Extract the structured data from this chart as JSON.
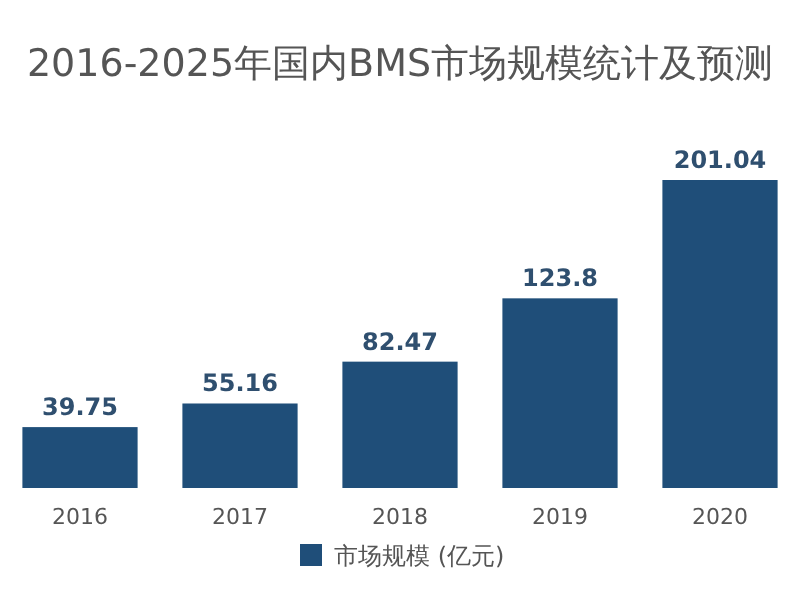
{
  "chart_data": {
    "type": "bar",
    "title": "2016-2025年国内BMS市场规模统计及预测",
    "categories": [
      "2016",
      "2017",
      "2018",
      "2019",
      "2020"
    ],
    "series": [
      {
        "name": "市场规模 (亿元)",
        "color": "#1f4e79",
        "values": [
          39.75,
          55.16,
          82.47,
          123.8,
          201.04
        ]
      }
    ],
    "data_labels": true,
    "legend": "bottom"
  }
}
